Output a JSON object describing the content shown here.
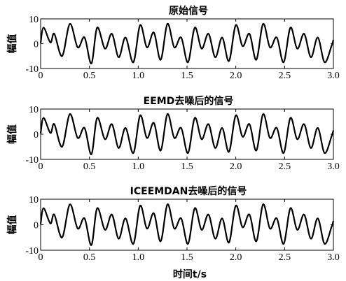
{
  "chart_data": [
    {
      "type": "line",
      "title": "原始信号",
      "ylabel": "幅值",
      "xlim": [
        0,
        3.0
      ],
      "ylim": [
        -10,
        10
      ],
      "x_ticks": [
        "0",
        "0.5",
        "1.0",
        "1.5",
        "2.0",
        "2.5",
        "3.0"
      ],
      "y_ticks": [
        "10",
        "0",
        "-10"
      ],
      "grid": false,
      "series": [
        {
          "x": [
            0.0,
            0.03,
            0.1,
            0.14,
            0.22,
            0.3,
            0.38,
            0.45,
            0.52,
            0.58,
            0.66,
            0.73,
            0.8,
            0.87,
            0.95,
            1.02,
            1.09,
            1.16,
            1.23,
            1.3,
            1.37,
            1.44,
            1.51,
            1.58,
            1.65,
            1.72,
            1.79,
            1.86,
            1.93,
            2.0,
            2.07,
            2.14,
            2.21,
            2.28,
            2.35,
            2.42,
            2.49,
            2.56,
            2.63,
            2.7,
            2.77,
            2.84,
            2.91,
            2.98,
            3.0
          ],
          "y": [
            0.3,
            6.5,
            0.5,
            4.0,
            -5.0,
            8.0,
            -1.5,
            2.5,
            -8.0,
            6.5,
            -2.0,
            4.0,
            -5.5,
            2.5,
            -7.5,
            7.5,
            -1.5,
            4.5,
            -6.5,
            8.0,
            -1.5,
            2.5,
            -7.5,
            6.5,
            -2.0,
            4.0,
            -5.5,
            2.5,
            -7.0,
            7.5,
            -1.0,
            4.0,
            -6.5,
            8.0,
            -1.5,
            2.5,
            -7.5,
            6.5,
            -2.0,
            4.0,
            -5.5,
            2.5,
            -7.5,
            -1.0,
            1.5
          ]
        }
      ]
    },
    {
      "type": "line",
      "title": "EEMD去噪后的信号",
      "ylabel": "幅值",
      "xlim": [
        0,
        3.0
      ],
      "ylim": [
        -10,
        10
      ],
      "x_ticks": [
        "0",
        "0.5",
        "1.0",
        "1.5",
        "2.0",
        "2.5",
        "3.0"
      ],
      "y_ticks": [
        "10",
        "0",
        "-10"
      ],
      "grid": false,
      "series": [
        {
          "x": [
            0.0,
            0.03,
            0.1,
            0.14,
            0.22,
            0.3,
            0.38,
            0.45,
            0.52,
            0.58,
            0.66,
            0.73,
            0.8,
            0.87,
            0.95,
            1.02,
            1.09,
            1.16,
            1.23,
            1.3,
            1.37,
            1.44,
            1.51,
            1.58,
            1.65,
            1.72,
            1.79,
            1.86,
            1.93,
            2.0,
            2.07,
            2.14,
            2.21,
            2.28,
            2.35,
            2.42,
            2.49,
            2.56,
            2.63,
            2.7,
            2.77,
            2.84,
            2.91,
            2.98,
            3.0
          ],
          "y": [
            0.3,
            6.5,
            0.5,
            4.0,
            -5.0,
            8.0,
            -1.5,
            2.5,
            -8.0,
            6.5,
            -2.0,
            4.0,
            -5.5,
            2.5,
            -7.5,
            7.5,
            -1.5,
            4.5,
            -6.5,
            8.0,
            -1.5,
            2.5,
            -7.5,
            6.5,
            -2.0,
            4.0,
            -5.5,
            2.5,
            -7.0,
            7.5,
            -1.0,
            4.0,
            -6.5,
            8.0,
            -1.5,
            2.5,
            -7.5,
            6.5,
            -2.0,
            4.0,
            -5.5,
            2.5,
            -7.5,
            -1.0,
            1.5
          ]
        }
      ]
    },
    {
      "type": "line",
      "title": "ICEEMDAN去噪后的信号",
      "ylabel": "幅值",
      "xlabel": "时间t/s",
      "xlim": [
        0,
        3.0
      ],
      "ylim": [
        -10,
        10
      ],
      "x_ticks": [
        "0",
        "0.5",
        "1.0",
        "1.5",
        "2.0",
        "2.5",
        "3.0"
      ],
      "y_ticks": [
        "10",
        "0",
        "-10"
      ],
      "grid": false,
      "series": [
        {
          "x": [
            0.0,
            0.03,
            0.1,
            0.14,
            0.22,
            0.3,
            0.38,
            0.45,
            0.52,
            0.58,
            0.66,
            0.73,
            0.8,
            0.87,
            0.95,
            1.02,
            1.09,
            1.16,
            1.23,
            1.3,
            1.37,
            1.44,
            1.51,
            1.58,
            1.65,
            1.72,
            1.79,
            1.86,
            1.93,
            2.0,
            2.07,
            2.14,
            2.21,
            2.28,
            2.35,
            2.42,
            2.49,
            2.56,
            2.63,
            2.7,
            2.77,
            2.84,
            2.91,
            2.98,
            3.0
          ],
          "y": [
            0.3,
            6.5,
            0.5,
            4.0,
            -5.0,
            8.0,
            -1.5,
            2.5,
            -8.0,
            6.5,
            -2.0,
            4.0,
            -5.5,
            2.5,
            -7.5,
            7.5,
            -1.5,
            4.5,
            -6.5,
            8.0,
            -1.5,
            2.5,
            -7.5,
            6.5,
            -2.0,
            4.0,
            -5.5,
            2.5,
            -7.0,
            7.5,
            -1.0,
            4.0,
            -6.5,
            8.0,
            -1.5,
            2.5,
            -7.5,
            6.5,
            -2.0,
            4.0,
            -5.5,
            2.5,
            -7.5,
            -1.0,
            1.5
          ]
        }
      ]
    }
  ]
}
